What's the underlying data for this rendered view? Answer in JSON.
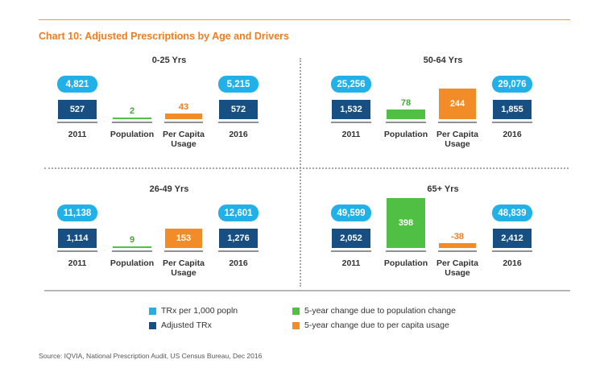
{
  "title": "Chart 10: Adjusted Prescriptions by Age and Drivers",
  "source": "Source: IQVIA, National Prescription Audit, US Census Bureau, Dec 2016",
  "colors": {
    "trx_per_1000": "#21b0e8",
    "adjusted_trx": "#174f82",
    "population_change": "#4fc043",
    "per_capita_change": "#f28c28",
    "title_orange": "#ef7d22"
  },
  "legend": [
    {
      "label": "TRx per 1,000 popln",
      "color": "#21b0e8"
    },
    {
      "label": "Adjusted TRx",
      "color": "#174f82"
    },
    {
      "label": "5-year change due to population change",
      "color": "#4fc043"
    },
    {
      "label": "5-year change due to per capita usage",
      "color": "#f28c28"
    }
  ],
  "chart_data": [
    {
      "type": "bar",
      "title": "0-25 Yrs",
      "categories": [
        "2011",
        "Population",
        "Per Capita\nUsage",
        "2016"
      ],
      "trx_per_1000": {
        "2011": "4,821",
        "2016": "5,215"
      },
      "values": [
        527,
        2,
        43,
        572
      ],
      "value_labels": [
        "527",
        "2",
        "43",
        "572"
      ]
    },
    {
      "type": "bar",
      "title": "50-64 Yrs",
      "categories": [
        "2011",
        "Population",
        "Per Capita\nUsage",
        "2016"
      ],
      "trx_per_1000": {
        "2011": "25,256",
        "2016": "29,076"
      },
      "values": [
        1532,
        78,
        244,
        1855
      ],
      "value_labels": [
        "1,532",
        "78",
        "244",
        "1,855"
      ]
    },
    {
      "type": "bar",
      "title": "26-49 Yrs",
      "categories": [
        "2011",
        "Population",
        "Per Capita\nUsage",
        "2016"
      ],
      "trx_per_1000": {
        "2011": "11,138",
        "2016": "12,601"
      },
      "values": [
        1114,
        9,
        153,
        1276
      ],
      "value_labels": [
        "1,114",
        "9",
        "153",
        "1,276"
      ]
    },
    {
      "type": "bar",
      "title": "65+ Yrs",
      "categories": [
        "2011",
        "Population",
        "Per Capita\nUsage",
        "2016"
      ],
      "trx_per_1000": {
        "2011": "49,599",
        "2016": "48,839"
      },
      "values": [
        2052,
        398,
        -38,
        2412
      ],
      "value_labels": [
        "2,052",
        "398",
        "-38",
        "2,412"
      ]
    }
  ]
}
